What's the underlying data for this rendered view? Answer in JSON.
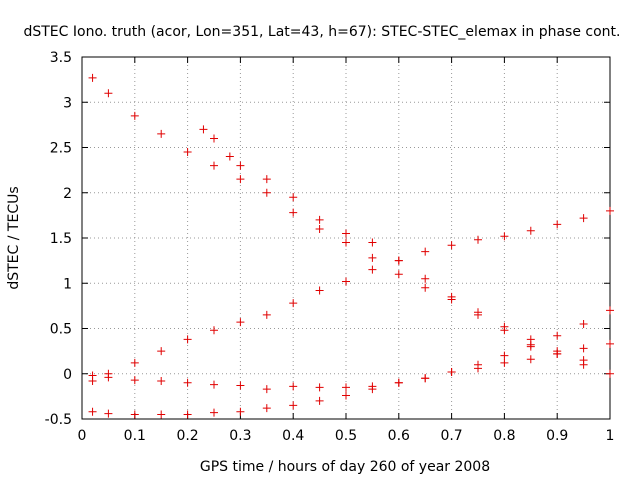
{
  "chart_data": {
    "type": "scatter",
    "title": "dSTEC Iono. truth (acor, Lon=351, Lat=43, h=67): STEC-STEC_elemax in phase cont.",
    "xlabel": "GPS time / hours of day 260 of year 2008",
    "ylabel": "dSTEC  / TECUs",
    "xlim": [
      0,
      1
    ],
    "ylim": [
      -0.5,
      3.5
    ],
    "xticks": [
      0,
      0.1,
      0.2,
      0.3,
      0.4,
      0.5,
      0.6,
      0.7,
      0.8,
      0.9,
      1
    ],
    "xtick_labels": [
      "0",
      "0.1",
      "0.2",
      "0.3",
      "0.4",
      "0.5",
      "0.6",
      "0.7",
      "0.8",
      "0.9",
      "1"
    ],
    "yticks": [
      -0.5,
      0,
      0.5,
      1,
      1.5,
      2,
      2.5,
      3,
      3.5
    ],
    "ytick_labels": [
      "-0.5",
      "0",
      "0.5",
      "1",
      "1.5",
      "2",
      "2.5",
      "3",
      "3.5"
    ],
    "grid": true,
    "marker": "+",
    "color": "#e00000",
    "series": [
      {
        "x": [
          0.02,
          0.05,
          0.1,
          0.15,
          0.2,
          0.25,
          0.3,
          0.35,
          0.4,
          0.45,
          0.5,
          0.55,
          0.6,
          0.65,
          0.7,
          0.75,
          0.8,
          0.85,
          0.9,
          0.95,
          1.0
        ],
        "y": [
          3.27,
          3.1,
          2.85,
          2.65,
          2.45,
          2.3,
          2.15,
          2.0,
          1.78,
          1.6,
          1.45,
          1.28,
          1.1,
          0.95,
          0.82,
          0.68,
          0.52,
          0.38,
          0.22,
          0.1,
          0.0
        ]
      },
      {
        "x": [
          0.23,
          0.25,
          0.28,
          0.3,
          0.35,
          0.4,
          0.45,
          0.5,
          0.55,
          0.6,
          0.65,
          0.7,
          0.75,
          0.8,
          0.85,
          0.9,
          0.95
        ],
        "y": [
          2.7,
          2.6,
          2.4,
          2.3,
          2.15,
          1.95,
          1.7,
          1.55,
          1.45,
          1.25,
          1.05,
          0.85,
          0.65,
          0.48,
          0.32,
          0.25,
          0.15
        ]
      },
      {
        "x": [
          0.02,
          0.05,
          0.1,
          0.15,
          0.2,
          0.25,
          0.3,
          0.35,
          0.4,
          0.45,
          0.5,
          0.55,
          0.6,
          0.65,
          0.7,
          0.75,
          0.8,
          0.85,
          0.9,
          0.95,
          1.0
        ],
        "y": [
          -0.08,
          0.0,
          0.12,
          0.25,
          0.38,
          0.48,
          0.57,
          0.65,
          0.78,
          0.92,
          1.02,
          1.15,
          1.25,
          1.35,
          1.42,
          1.48,
          1.52,
          1.58,
          1.65,
          1.72,
          1.8
        ]
      },
      {
        "x": [
          0.02,
          0.05,
          0.1,
          0.15,
          0.2,
          0.25,
          0.3,
          0.35,
          0.4,
          0.45,
          0.5,
          0.55,
          0.6,
          0.65,
          0.7,
          0.75,
          0.8,
          0.85,
          0.9,
          0.95,
          1.0
        ],
        "y": [
          -0.02,
          -0.04,
          -0.07,
          -0.08,
          -0.1,
          -0.12,
          -0.13,
          -0.17,
          -0.14,
          -0.15,
          -0.15,
          -0.14,
          -0.1,
          -0.05,
          0.02,
          0.1,
          0.2,
          0.3,
          0.42,
          0.55,
          0.7
        ]
      },
      {
        "x": [
          0.02,
          0.05,
          0.1,
          0.15,
          0.2,
          0.25,
          0.3,
          0.35,
          0.4,
          0.45,
          0.5,
          0.55,
          0.6,
          0.65,
          0.7,
          0.75,
          0.8,
          0.85,
          0.9,
          0.95,
          1.0
        ],
        "y": [
          -0.42,
          -0.44,
          -0.45,
          -0.45,
          -0.45,
          -0.43,
          -0.42,
          -0.38,
          -0.35,
          -0.3,
          -0.24,
          -0.17,
          -0.1,
          -0.05,
          0.02,
          0.06,
          0.12,
          0.16,
          0.22,
          0.28,
          0.33
        ]
      }
    ]
  }
}
